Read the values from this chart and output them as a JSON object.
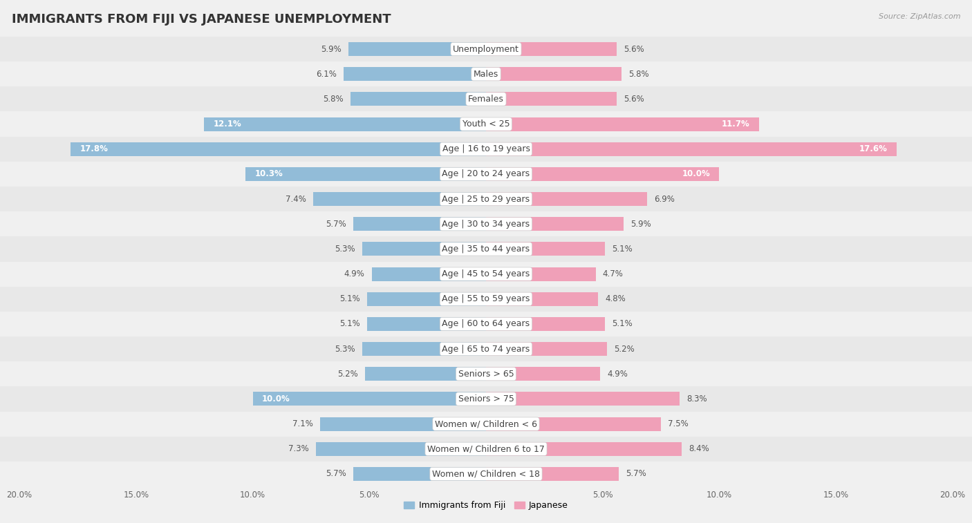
{
  "title": "IMMIGRANTS FROM FIJI VS JAPANESE UNEMPLOYMENT",
  "source": "Source: ZipAtlas.com",
  "categories": [
    "Unemployment",
    "Males",
    "Females",
    "Youth < 25",
    "Age | 16 to 19 years",
    "Age | 20 to 24 years",
    "Age | 25 to 29 years",
    "Age | 30 to 34 years",
    "Age | 35 to 44 years",
    "Age | 45 to 54 years",
    "Age | 55 to 59 years",
    "Age | 60 to 64 years",
    "Age | 65 to 74 years",
    "Seniors > 65",
    "Seniors > 75",
    "Women w/ Children < 6",
    "Women w/ Children 6 to 17",
    "Women w/ Children < 18"
  ],
  "fiji_values": [
    5.9,
    6.1,
    5.8,
    12.1,
    17.8,
    10.3,
    7.4,
    5.7,
    5.3,
    4.9,
    5.1,
    5.1,
    5.3,
    5.2,
    10.0,
    7.1,
    7.3,
    5.7
  ],
  "japanese_values": [
    5.6,
    5.8,
    5.6,
    11.7,
    17.6,
    10.0,
    6.9,
    5.9,
    5.1,
    4.7,
    4.8,
    5.1,
    5.2,
    4.9,
    8.3,
    7.5,
    8.4,
    5.7
  ],
  "fiji_color": "#92bcd8",
  "japanese_color": "#f0a0b8",
  "row_bg_even": "#f0f0f0",
  "row_bg_odd": "#e8e8e8",
  "chart_bg": "#f0f0f0",
  "label_bg": "#ffffff",
  "xlim": 20.0,
  "title_fontsize": 13,
  "label_fontsize": 9,
  "value_fontsize": 8.5,
  "tick_fontsize": 8.5,
  "legend_fiji": "Immigrants from Fiji",
  "legend_japanese": "Japanese",
  "value_inside_threshold": 9.5
}
